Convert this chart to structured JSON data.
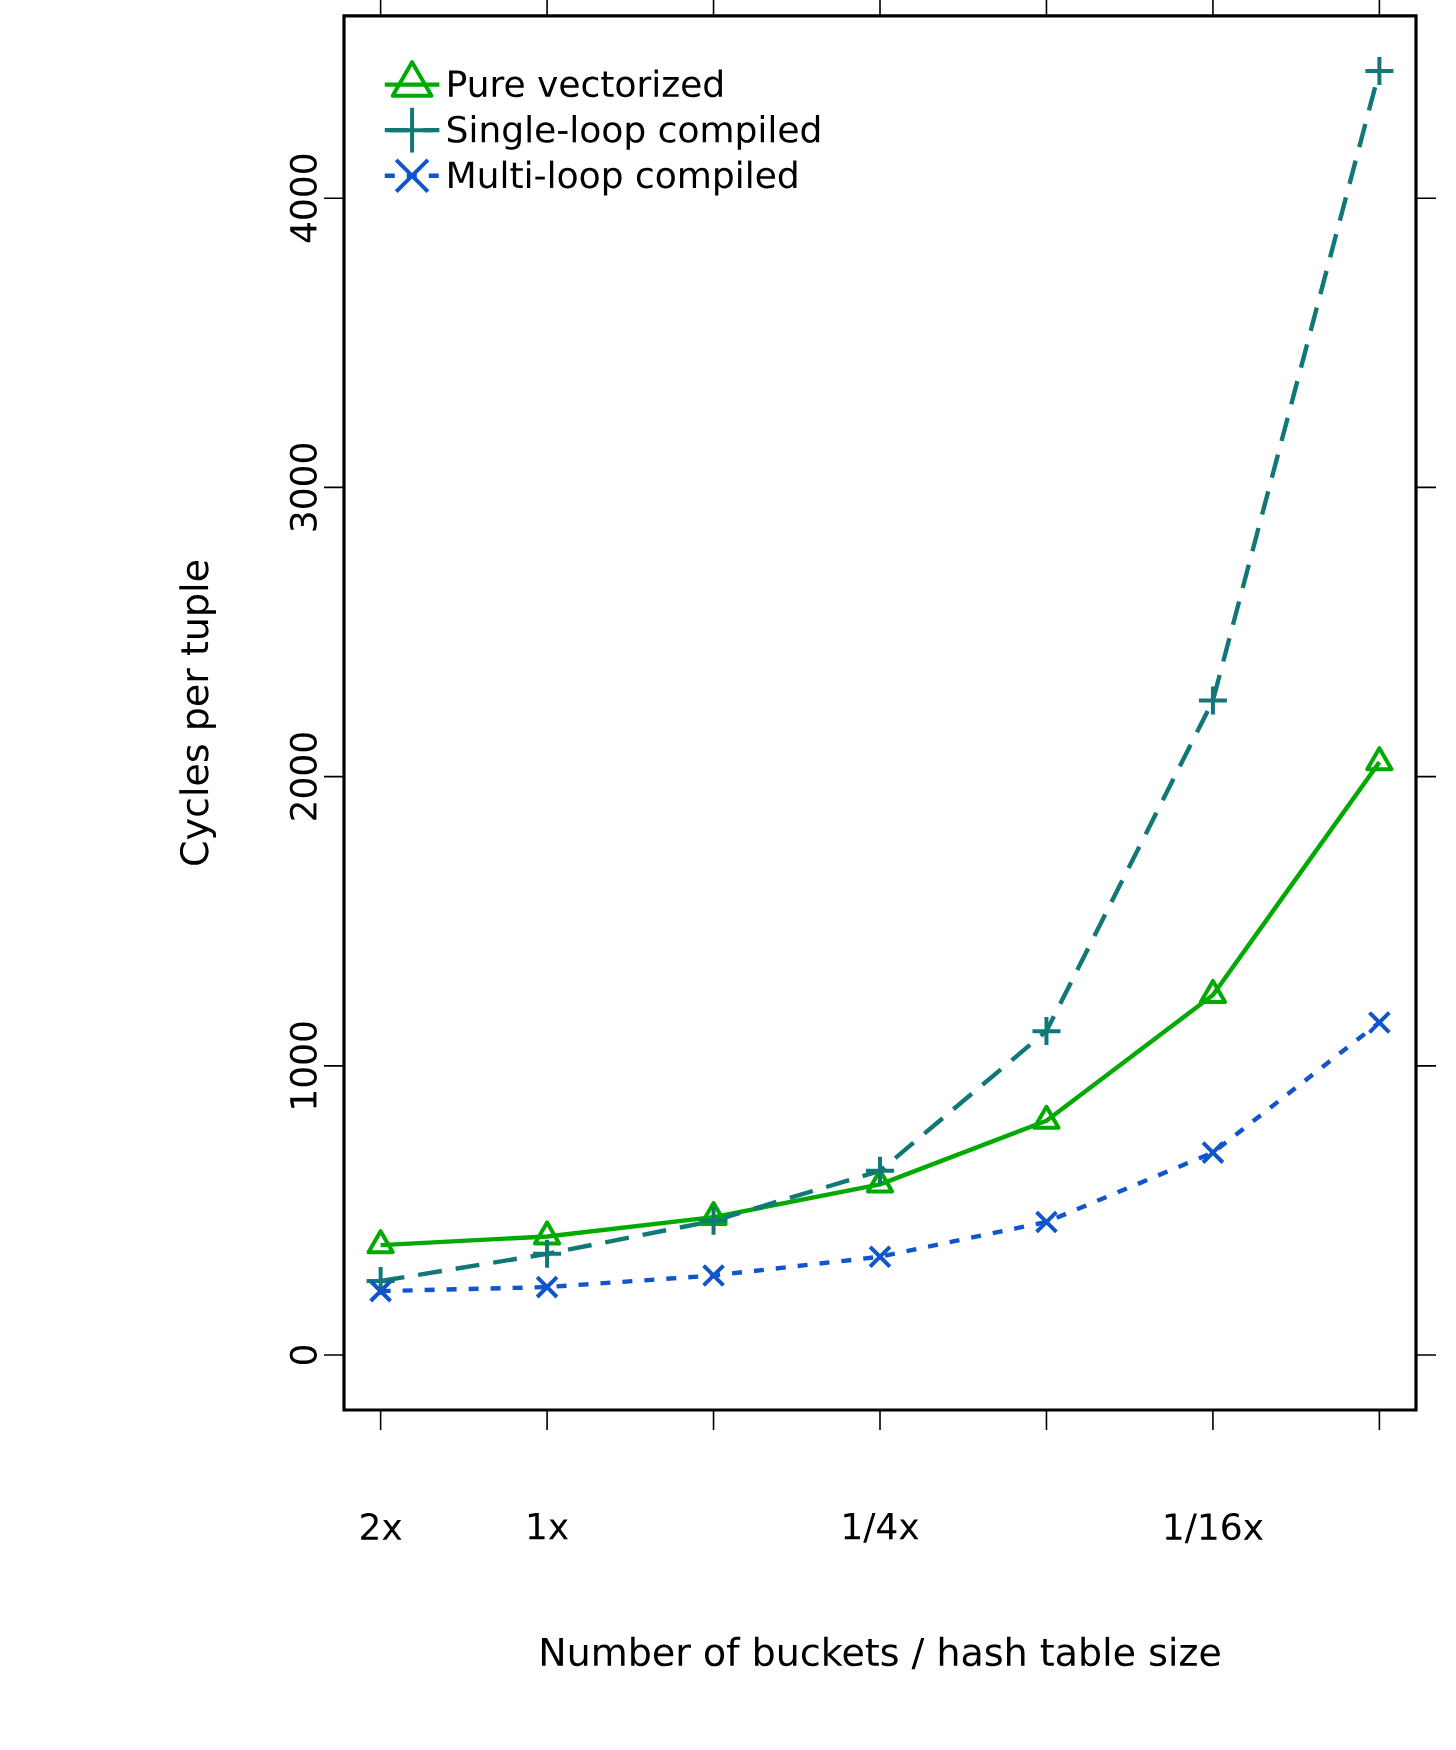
{
  "chart_data": {
    "type": "line",
    "xlabel": "Number of buckets / hash table size",
    "ylabel": "Cycles per tuple",
    "categories": [
      "2x",
      "1x",
      null,
      "1/4x",
      null,
      "1/16x",
      null
    ],
    "ylim": [
      -190,
      4630
    ],
    "yticks": [
      0,
      1000,
      2000,
      3000,
      4000
    ],
    "legend": "top left",
    "grid": false,
    "series": [
      {
        "name": "Pure vectorized",
        "color": "#00aa00",
        "marker": "triangle",
        "line_style": "solid",
        "values": [
          380,
          410,
          477,
          590,
          810,
          1245,
          2050
        ]
      },
      {
        "name": "Single-loop compiled",
        "color": "#117777",
        "marker": "plus",
        "line_style": "dashed",
        "values": [
          256,
          350,
          464,
          637,
          1120,
          2263,
          4440
        ]
      },
      {
        "name": "Multi-loop compiled",
        "color": "#1155cc",
        "marker": "cross",
        "line_style": "dotted",
        "values": [
          221,
          235,
          275,
          340,
          460,
          700,
          1150
        ]
      }
    ]
  }
}
